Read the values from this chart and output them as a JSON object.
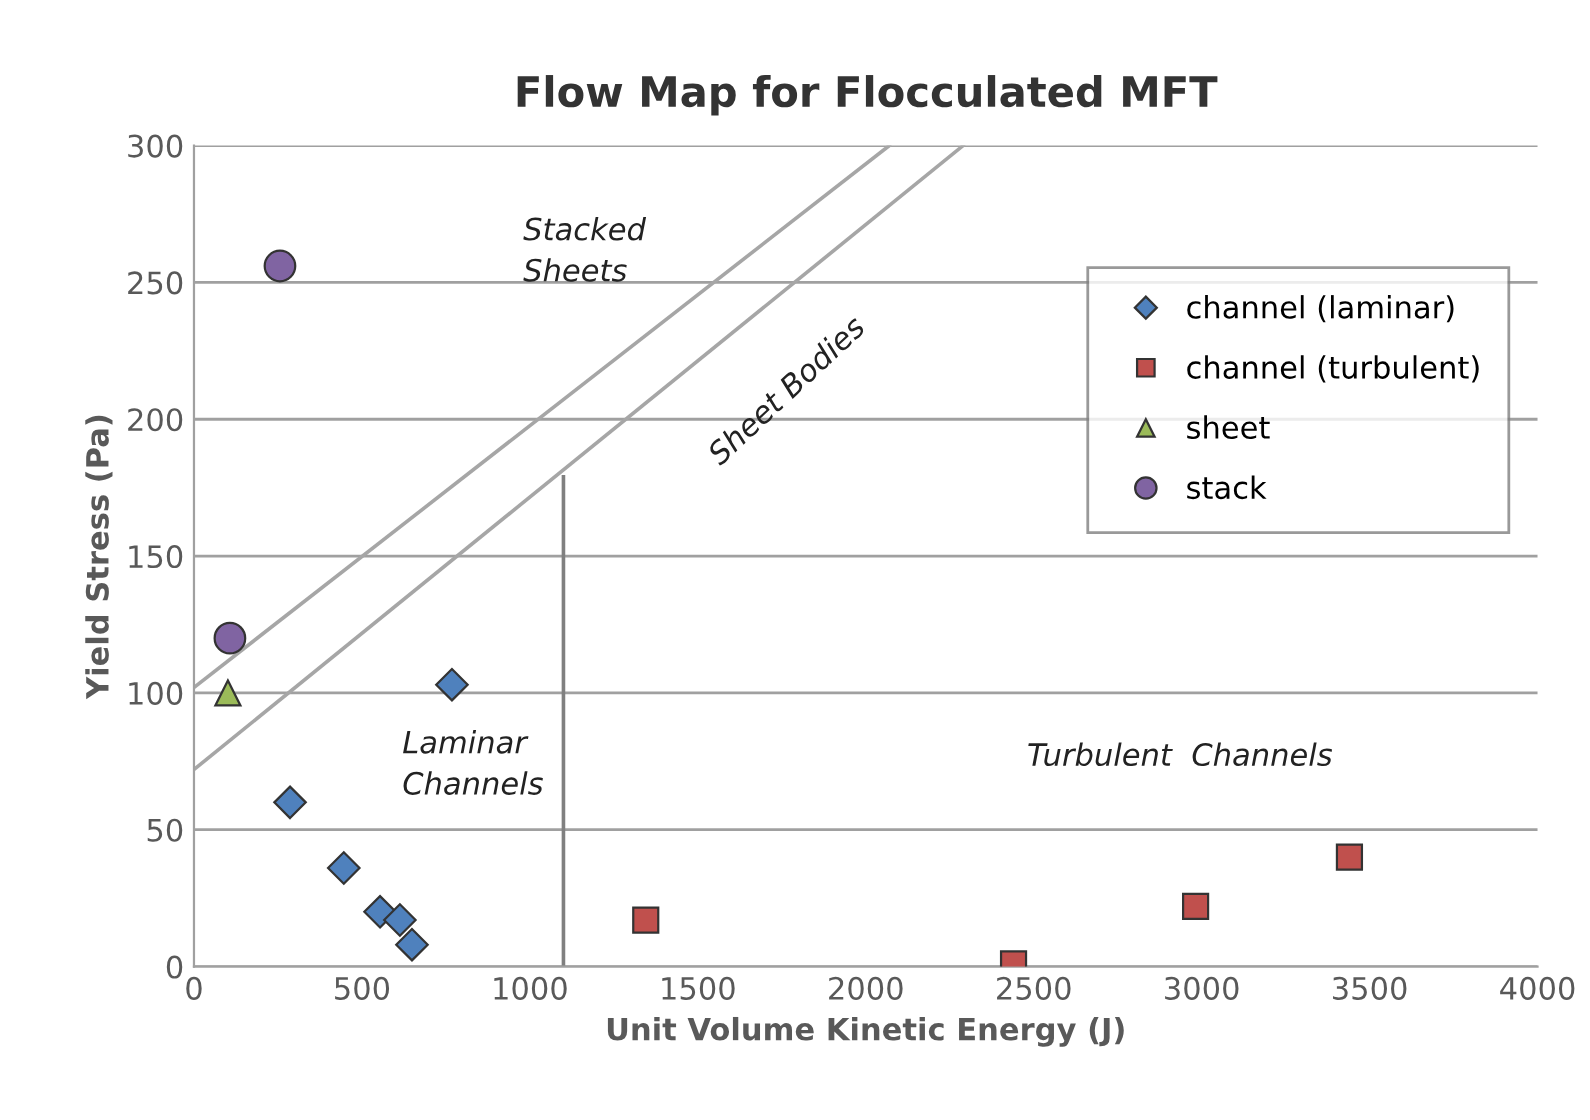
{
  "chart_data": {
    "type": "scatter",
    "title": "Flow Map for Flocculated MFT",
    "xlabel": "Unit Volume Kinetic Energy (J)",
    "ylabel": "Yield Stress (Pa)",
    "xlim": [
      0,
      4000
    ],
    "xticks": [
      0,
      500,
      1000,
      1500,
      2000,
      2500,
      3000,
      3500,
      4000
    ],
    "ylim": [
      0,
      300
    ],
    "yticks": [
      0,
      50,
      100,
      150,
      200,
      250,
      300
    ],
    "grid": "y",
    "legend": "top right",
    "series": [
      {
        "type": "line",
        "color": "#a6a6a6",
        "x": [
          0,
          2070
        ],
        "values": [
          102,
          300
        ],
        "marker": "none"
      },
      {
        "type": "line",
        "color": "#a6a6a6",
        "x": [
          0,
          2290
        ],
        "values": [
          72,
          300
        ],
        "marker": "none"
      },
      {
        "type": "line",
        "color": "#808080",
        "x": [
          1100,
          1100
        ],
        "values": [
          0,
          179
        ],
        "marker": "none"
      },
      {
        "name": "channel (laminar)",
        "color": "#4f81bd",
        "marker": "diamond",
        "x": [
          286,
          446,
          554,
          613,
          649,
          768
        ],
        "values": [
          60,
          36,
          20,
          17,
          8,
          103
        ]
      },
      {
        "name": "channel (turbulent)",
        "color": "#c0504d",
        "marker": "square",
        "x": [
          1345,
          2440,
          2982,
          3440
        ],
        "values": [
          17,
          1,
          22,
          40
        ]
      },
      {
        "name": "sheet",
        "color": "#9bbb59",
        "marker": "triangle",
        "x": [
          101
        ],
        "values": [
          100
        ]
      },
      {
        "name": "stack",
        "color": "#8064a2",
        "marker": "circle",
        "x": [
          256,
          107
        ],
        "values": [
          256,
          120
        ]
      }
    ],
    "annotations": [
      "Stacked\nSheets",
      "Sheet Bodies",
      "Laminar\nChannels",
      "Turbulent  Channels"
    ]
  }
}
